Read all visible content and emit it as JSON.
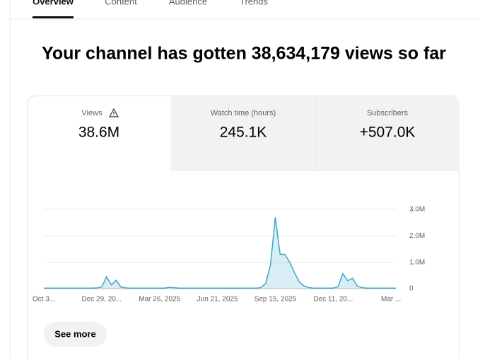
{
  "tabs": [
    "Overview",
    "Content",
    "Audience",
    "Trends"
  ],
  "headline": "Your channel has gotten 38,634,179 views so far",
  "metrics": [
    {
      "label": "Views",
      "value": "38.6M"
    },
    {
      "label": "Watch time (hours)",
      "value": "245.1K"
    },
    {
      "label": "Subscribers",
      "value": "+507.0K"
    }
  ],
  "button": "See more",
  "chart_data": {
    "type": "area",
    "color": "#3ea6c8",
    "categories": [
      "Oct 3...",
      null,
      null,
      null,
      null,
      null,
      null,
      null,
      null,
      null,
      null,
      null,
      "Dec 29, 20...",
      null,
      null,
      null,
      null,
      null,
      null,
      null,
      null,
      null,
      null,
      null,
      "Mar 26, 2025",
      null,
      null,
      null,
      null,
      null,
      null,
      null,
      null,
      null,
      null,
      null,
      "Jun 21, 2025",
      null,
      null,
      null,
      null,
      null,
      null,
      null,
      null,
      null,
      null,
      null,
      "Sep 15, 2025",
      null,
      null,
      null,
      null,
      null,
      null,
      null,
      null,
      null,
      null,
      null,
      "Dec 11, 20...",
      null,
      null,
      null,
      null,
      null,
      null,
      null,
      null,
      null,
      null,
      null,
      "Mar ...",
      null
    ],
    "values": [
      20000,
      20000,
      20000,
      20000,
      20000,
      20000,
      20000,
      20000,
      20000,
      20000,
      20000,
      30000,
      60000,
      450000,
      150000,
      320000,
      60000,
      30000,
      20000,
      20000,
      20000,
      20000,
      20000,
      20000,
      20000,
      20000,
      50000,
      40000,
      20000,
      20000,
      20000,
      20000,
      20000,
      20000,
      20000,
      20000,
      20000,
      20000,
      20000,
      20000,
      20000,
      20000,
      20000,
      20000,
      20000,
      40000,
      200000,
      900000,
      2700000,
      1300000,
      1300000,
      1000000,
      600000,
      250000,
      100000,
      40000,
      20000,
      20000,
      20000,
      20000,
      20000,
      80000,
      570000,
      300000,
      400000,
      100000,
      40000,
      20000,
      20000,
      20000,
      20000,
      20000,
      20000,
      20000
    ],
    "ylim": [
      0,
      3000000
    ],
    "yticks": [
      0,
      {
        "value": 1000000,
        "label": "1.0M"
      },
      {
        "value": 2000000,
        "label": "2.0M"
      },
      {
        "value": 3000000,
        "label": "3.0M"
      }
    ],
    "grid": true
  }
}
